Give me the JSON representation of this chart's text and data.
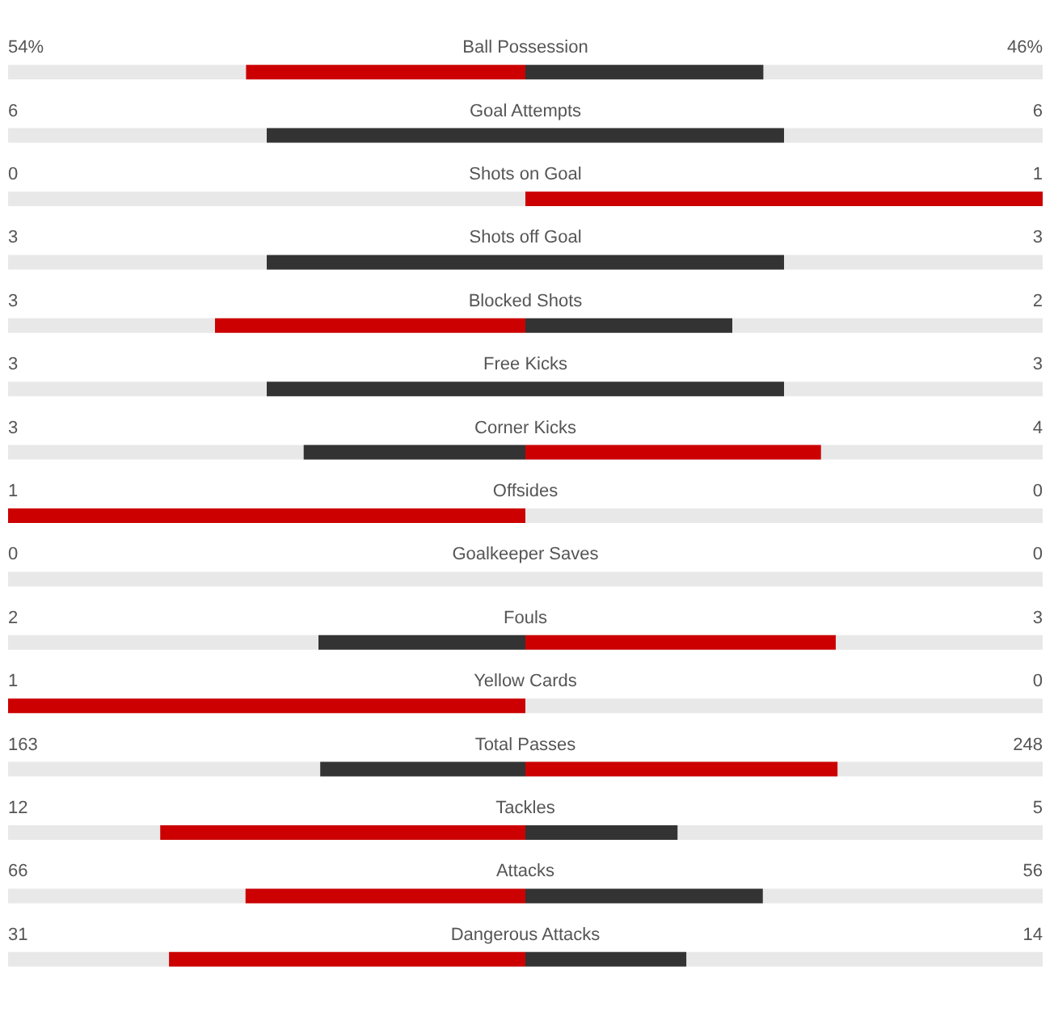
{
  "chart_data": {
    "type": "other",
    "data_labels": true,
    "categories": [
      "Ball Possession",
      "Goal Attempts",
      "Shots on Goal",
      "Shots off Goal",
      "Blocked Shots",
      "Free Kicks",
      "Corner Kicks",
      "Offsides",
      "Goalkeeper Saves",
      "Fouls",
      "Yellow Cards",
      "Total Passes",
      "Tackles",
      "Attacks",
      "Dangerous Attacks"
    ],
    "series": [
      {
        "values": [
          54,
          6,
          0,
          3,
          3,
          3,
          3,
          1,
          0,
          2,
          1,
          163,
          12,
          66,
          31
        ],
        "colors": [
          "#cc0000",
          "#333333",
          "#333333",
          "#333333",
          "#cc0000",
          "#333333",
          "#333333",
          "#cc0000",
          "#333333",
          "#333333",
          "#cc0000",
          "#333333",
          "#cc0000",
          "#cc0000",
          "#cc0000"
        ],
        "value_labels": [
          "54%",
          "6",
          "0",
          "3",
          "3",
          "3",
          "3",
          "1",
          "0",
          "2",
          "1",
          "163",
          "12",
          "66",
          "31"
        ]
      },
      {
        "values": [
          46,
          6,
          1,
          3,
          2,
          3,
          4,
          0,
          0,
          3,
          0,
          248,
          5,
          56,
          14
        ],
        "colors": [
          "#333333",
          "#333333",
          "#cc0000",
          "#333333",
          "#333333",
          "#333333",
          "#cc0000",
          "#333333",
          "#333333",
          "#cc0000",
          "#333333",
          "#cc0000",
          "#333333",
          "#333333",
          "#333333"
        ],
        "value_labels": [
          "46%",
          "6",
          "1",
          "3",
          "2",
          "3",
          "4",
          "0",
          "0",
          "3",
          "0",
          "248",
          "5",
          "56",
          "14"
        ]
      }
    ]
  }
}
